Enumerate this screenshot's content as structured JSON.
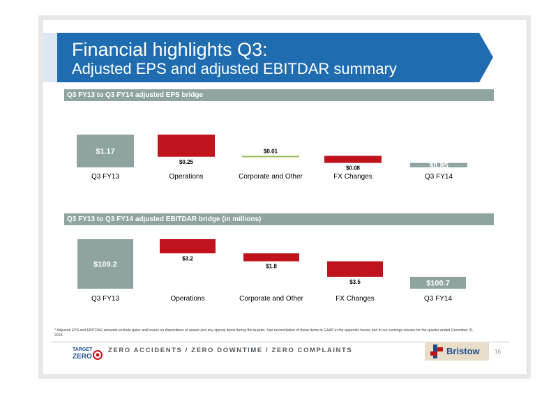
{
  "header": {
    "title_line1": "Financial highlights Q3:",
    "title_line2": "Adjusted EPS and adjusted EBITDAR summary",
    "band_color": "#1f6cb0"
  },
  "colors": {
    "total": "#8fa3a1",
    "negative": "#c0141c",
    "positive": "#9bbb59"
  },
  "chart_data": [
    {
      "type": "bar",
      "subtype": "waterfall",
      "title": "Q3 FY13 to Q3 FY14 adjusted EPS bridge",
      "categories": [
        "Q3 FY13",
        "Operations",
        "Corporate and Other",
        "FX Changes",
        "Q3 FY14"
      ],
      "values": [
        1.17,
        -0.25,
        0.01,
        -0.08,
        0.85
      ],
      "labels": [
        "$1.17",
        "$0.25",
        "$0.01",
        "$0.08",
        "$0.85"
      ],
      "kinds": [
        "total",
        "negative",
        "positive",
        "negative",
        "total"
      ]
    },
    {
      "type": "bar",
      "subtype": "waterfall",
      "title": "Q3 FY13 to Q3 FY14 adjusted EBITDAR bridge (in millions)",
      "categories": [
        "Q3 FY13",
        "Operations",
        "Corporate and Other",
        "FX Changes",
        "Q3 FY14"
      ],
      "values": [
        109.2,
        -3.2,
        -1.8,
        -3.5,
        100.7
      ],
      "labels": [
        "$109.2",
        "$3.2",
        "$1.8",
        "$3.5",
        "$100.7"
      ],
      "kinds": [
        "total",
        "negative",
        "negative",
        "negative",
        "total"
      ]
    }
  ],
  "footnote": "* Adjusted EPS and EBITDAR amounts exclude gains and losses on dispositions of assets and any special items during the quarter. See reconciliation of these items to GAAP in the appendix hereto and in our earnings release for the quarter ended December 31, 2013.",
  "footer": {
    "logo_line1": "TARGET",
    "logo_line2": "ZERO",
    "slogan": "ZERO ACCIDENTS / ZERO DOWNTIME / ZERO COMPLAINTS",
    "brand": "Bristow",
    "page_number": "16"
  }
}
